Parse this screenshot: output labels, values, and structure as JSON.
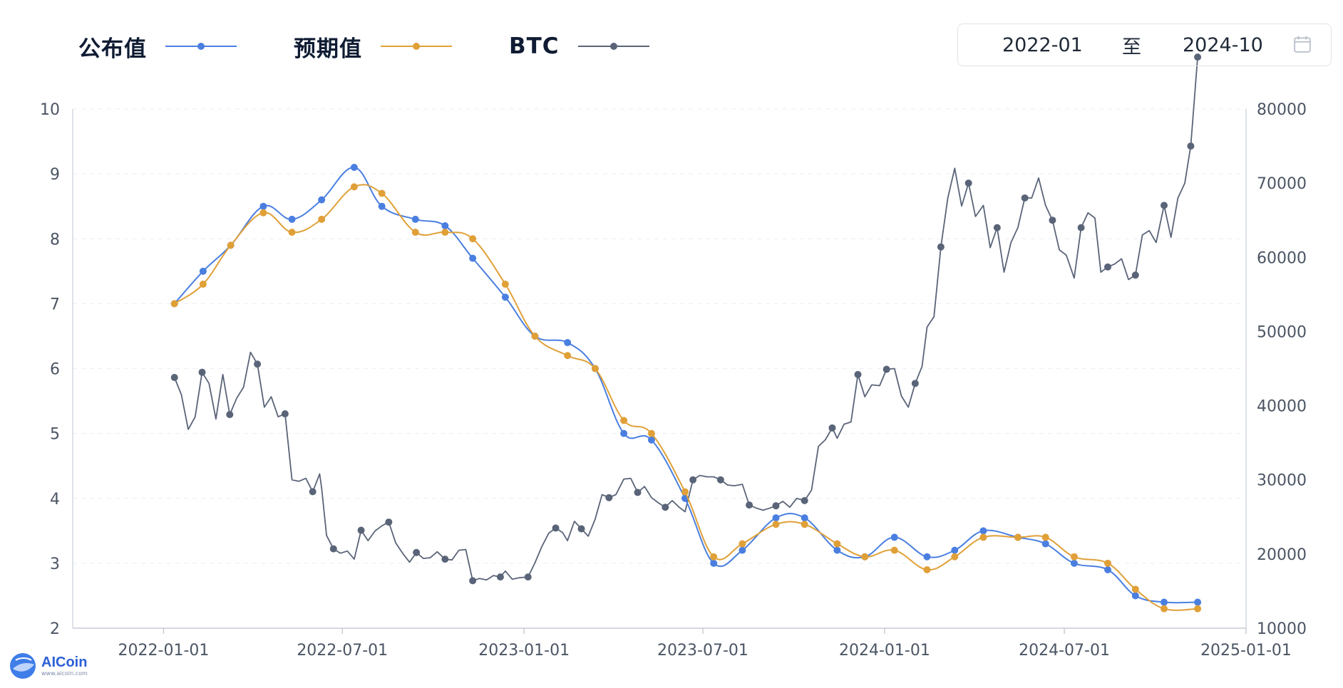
{
  "legend": {
    "published": {
      "label": "公布值",
      "color": "#4a7fe0"
    },
    "expected": {
      "label": "预期值",
      "color": "#e0a038"
    },
    "btc": {
      "label": "BTC",
      "color": "#5a6478"
    }
  },
  "date_range": {
    "start": "2022-01",
    "separator": "至",
    "end": "2024-10",
    "icon": "calendar-icon"
  },
  "brand": {
    "name": "AICoin",
    "url": "www.aicoin.com",
    "icon": "globe-logo"
  },
  "chart_data": {
    "type": "line",
    "x_ticks": [
      "2022-01-01",
      "2022-07-01",
      "2023-01-01",
      "2023-07-01",
      "2024-01-01",
      "2024-07-01",
      "2025-01-01"
    ],
    "x_range": [
      "2021-10-01",
      "2025-01-01"
    ],
    "y_left": {
      "range": [
        2,
        10
      ],
      "ticks": [
        "2",
        "3",
        "4",
        "5",
        "6",
        "7",
        "8",
        "9",
        "10"
      ]
    },
    "y_right": {
      "range": [
        10000,
        80000
      ],
      "ticks": [
        "10000",
        "20000",
        "30000",
        "40000",
        "50000",
        "60000",
        "70000",
        "80000"
      ]
    },
    "grid": "horizontal dashed",
    "legend_position": "top-left",
    "series": [
      {
        "key": "published",
        "axis": "left",
        "dates": [
          "2022-01-12",
          "2022-02-10",
          "2022-03-10",
          "2022-04-12",
          "2022-05-11",
          "2022-06-10",
          "2022-07-13",
          "2022-08-10",
          "2022-09-13",
          "2022-10-13",
          "2022-11-10",
          "2022-12-13",
          "2023-01-12",
          "2023-02-14",
          "2023-03-14",
          "2023-04-12",
          "2023-05-10",
          "2023-06-13",
          "2023-07-12",
          "2023-08-10",
          "2023-09-13",
          "2023-10-12",
          "2023-11-14",
          "2023-12-12",
          "2024-01-11",
          "2024-02-13",
          "2024-03-12",
          "2024-04-10",
          "2024-05-15",
          "2024-06-12",
          "2024-07-11",
          "2024-08-14",
          "2024-09-11",
          "2024-10-10",
          "2024-11-13"
        ],
        "values": [
          7.0,
          7.5,
          7.9,
          8.5,
          8.3,
          8.6,
          9.1,
          8.5,
          8.3,
          8.2,
          7.7,
          7.1,
          6.5,
          6.4,
          6.0,
          5.0,
          4.9,
          4.0,
          3.0,
          3.2,
          3.7,
          3.7,
          3.2,
          3.1,
          3.4,
          3.1,
          3.2,
          3.5,
          3.4,
          3.3,
          3.0,
          2.9,
          2.5,
          2.4,
          2.4
        ]
      },
      {
        "key": "expected",
        "axis": "left",
        "dates": [
          "2022-01-12",
          "2022-02-10",
          "2022-03-10",
          "2022-04-12",
          "2022-05-11",
          "2022-06-10",
          "2022-07-13",
          "2022-08-10",
          "2022-09-13",
          "2022-10-13",
          "2022-11-10",
          "2022-12-13",
          "2023-01-12",
          "2023-02-14",
          "2023-03-14",
          "2023-04-12",
          "2023-05-10",
          "2023-06-13",
          "2023-07-12",
          "2023-08-10",
          "2023-09-13",
          "2023-10-12",
          "2023-11-14",
          "2023-12-12",
          "2024-01-11",
          "2024-02-13",
          "2024-03-12",
          "2024-04-10",
          "2024-05-15",
          "2024-06-12",
          "2024-07-11",
          "2024-08-14",
          "2024-09-11",
          "2024-10-10",
          "2024-11-13"
        ],
        "values": [
          7.0,
          7.3,
          7.9,
          8.4,
          8.1,
          8.3,
          8.8,
          8.7,
          8.1,
          8.1,
          8.0,
          7.3,
          6.5,
          6.2,
          6.0,
          5.2,
          5.0,
          4.1,
          3.1,
          3.3,
          3.6,
          3.6,
          3.3,
          3.1,
          3.2,
          2.9,
          3.1,
          3.4,
          3.4,
          3.4,
          3.1,
          3.0,
          2.6,
          2.3,
          2.3
        ]
      },
      {
        "key": "btc",
        "axis": "right",
        "dates": [
          "2022-01-12",
          "2022-01-19",
          "2022-01-26",
          "2022-02-02",
          "2022-02-09",
          "2022-02-16",
          "2022-02-23",
          "2022-03-02",
          "2022-03-09",
          "2022-03-16",
          "2022-03-23",
          "2022-03-30",
          "2022-04-06",
          "2022-04-13",
          "2022-04-20",
          "2022-04-27",
          "2022-05-04",
          "2022-05-11",
          "2022-05-18",
          "2022-05-25",
          "2022-06-01",
          "2022-06-08",
          "2022-06-10",
          "2022-06-15",
          "2022-06-22",
          "2022-06-29",
          "2022-07-06",
          "2022-07-13",
          "2022-07-20",
          "2022-07-27",
          "2022-08-03",
          "2022-08-10",
          "2022-08-17",
          "2022-08-24",
          "2022-08-31",
          "2022-09-07",
          "2022-09-14",
          "2022-09-21",
          "2022-09-28",
          "2022-10-05",
          "2022-10-13",
          "2022-10-20",
          "2022-10-27",
          "2022-11-03",
          "2022-11-10",
          "2022-11-17",
          "2022-11-24",
          "2022-12-01",
          "2022-12-08",
          "2022-12-13",
          "2022-12-20",
          "2022-12-27",
          "2023-01-05",
          "2023-01-12",
          "2023-01-19",
          "2023-01-26",
          "2023-02-02",
          "2023-02-09",
          "2023-02-14",
          "2023-02-21",
          "2023-02-28",
          "2023-03-07",
          "2023-03-14",
          "2023-03-21",
          "2023-03-28",
          "2023-04-04",
          "2023-04-12",
          "2023-04-19",
          "2023-04-26",
          "2023-05-03",
          "2023-05-10",
          "2023-05-17",
          "2023-05-24",
          "2023-05-31",
          "2023-06-07",
          "2023-06-13",
          "2023-06-21",
          "2023-06-28",
          "2023-07-05",
          "2023-07-12",
          "2023-07-19",
          "2023-07-26",
          "2023-08-02",
          "2023-08-10",
          "2023-08-17",
          "2023-08-24",
          "2023-08-31",
          "2023-09-07",
          "2023-09-13",
          "2023-09-20",
          "2023-09-27",
          "2023-10-04",
          "2023-10-12",
          "2023-10-19",
          "2023-10-26",
          "2023-11-02",
          "2023-11-09",
          "2023-11-14",
          "2023-11-21",
          "2023-11-28",
          "2023-12-05",
          "2023-12-12",
          "2023-12-19",
          "2023-12-27",
          "2024-01-03",
          "2024-01-11",
          "2024-01-18",
          "2024-01-25",
          "2024-02-01",
          "2024-02-08",
          "2024-02-13",
          "2024-02-20",
          "2024-02-27",
          "2024-03-05",
          "2024-03-12",
          "2024-03-19",
          "2024-03-26",
          "2024-04-02",
          "2024-04-10",
          "2024-04-17",
          "2024-04-24",
          "2024-05-01",
          "2024-05-08",
          "2024-05-15",
          "2024-05-22",
          "2024-05-29",
          "2024-06-05",
          "2024-06-12",
          "2024-06-19",
          "2024-06-26",
          "2024-07-03",
          "2024-07-11",
          "2024-07-18",
          "2024-07-25",
          "2024-08-01",
          "2024-08-07",
          "2024-08-14",
          "2024-08-21",
          "2024-08-28",
          "2024-09-04",
          "2024-09-11",
          "2024-09-18",
          "2024-09-25",
          "2024-10-02",
          "2024-10-10",
          "2024-10-17",
          "2024-10-24",
          "2024-10-31",
          "2024-11-06",
          "2024-11-13"
        ],
        "values": [
          43800,
          41500,
          36800,
          38500,
          44500,
          43000,
          38200,
          44200,
          38800,
          41000,
          42500,
          47200,
          45600,
          39800,
          41200,
          38500,
          38900,
          30000,
          29800,
          30200,
          28400,
          30800,
          28900,
          22500,
          20700,
          20100,
          20400,
          19300,
          23200,
          21800,
          23100,
          23800,
          24300,
          21500,
          20100,
          18900,
          20200,
          19400,
          19500,
          20300,
          19300,
          19200,
          20500,
          20600,
          16400,
          16700,
          16500,
          17100,
          16900,
          17700,
          16600,
          16800,
          16900,
          18800,
          21000,
          22800,
          23500,
          22900,
          21800,
          24400,
          23400,
          22400,
          24700,
          28000,
          27600,
          28000,
          30100,
          30200,
          28300,
          29100,
          27600,
          26900,
          26300,
          27200,
          26300,
          25700,
          30000,
          30600,
          30400,
          30400,
          30000,
          29300,
          29200,
          29400,
          26600,
          26200,
          25900,
          26200,
          26500,
          27100,
          26300,
          27500,
          27200,
          28600,
          34500,
          35400,
          37000,
          35600,
          37500,
          37800,
          44200,
          41200,
          42800,
          42700,
          44900,
          45000,
          41300,
          39800,
          43000,
          45300,
          50600,
          52000,
          61400,
          68000,
          72000,
          66900,
          70000,
          65500,
          67000,
          61300,
          64000,
          58000,
          62000,
          64000,
          68000,
          68000,
          70700,
          67000,
          65000,
          61000,
          60300,
          57200,
          64000,
          66000,
          65300,
          58000,
          58700,
          59100,
          59800,
          57000,
          57600,
          63000,
          63600,
          62000,
          67000,
          62700,
          68000,
          70000,
          75000,
          87000
        ]
      }
    ]
  }
}
